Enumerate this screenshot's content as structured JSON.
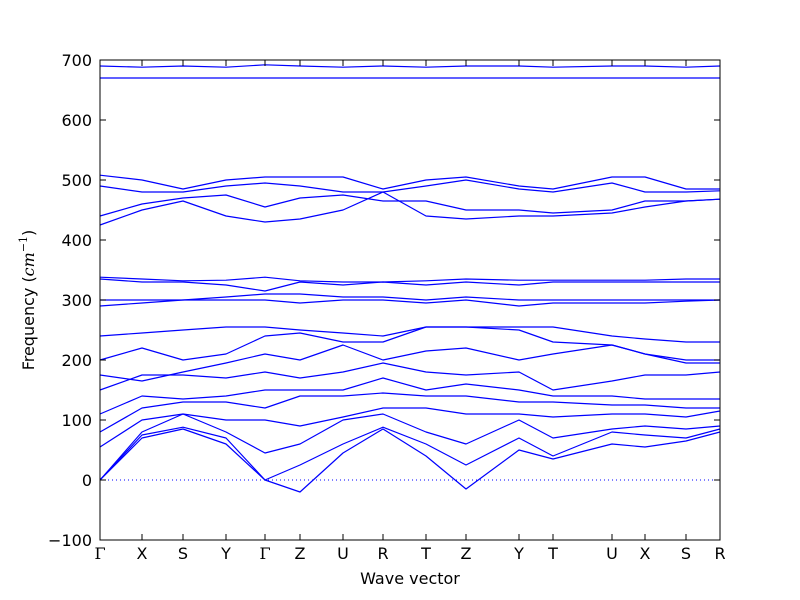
{
  "chart_data": {
    "type": "line",
    "xlabel": "Wave vector",
    "ylabel": [
      "Frequency (",
      "cm",
      "−1",
      ")"
    ],
    "color": "#0000ff",
    "x": [
      0,
      42,
      83,
      126,
      165,
      200,
      243,
      283,
      326,
      366,
      419,
      453,
      512,
      545,
      586,
      620
    ],
    "xlim": [
      0,
      620
    ],
    "xticks": [
      {
        "value": 0,
        "label": "Γ"
      },
      {
        "value": 42,
        "label": "X"
      },
      {
        "value": 83,
        "label": "S"
      },
      {
        "value": 126,
        "label": "Y"
      },
      {
        "value": 165,
        "label": "Γ"
      },
      {
        "value": 200,
        "label": "Z"
      },
      {
        "value": 243,
        "label": "U"
      },
      {
        "value": 283,
        "label": "R"
      },
      {
        "value": 326,
        "label": "T"
      },
      {
        "value": 366,
        "label": "Z"
      },
      {
        "value": 419,
        "label": "Y"
      },
      {
        "value": 453,
        "label": "T"
      },
      {
        "value": 512,
        "label": "U"
      },
      {
        "value": 545,
        "label": "X"
      },
      {
        "value": 586,
        "label": "S"
      },
      {
        "value": 620,
        "label": "R"
      }
    ],
    "ylim": [
      -100,
      700
    ],
    "yticks": [
      {
        "value": -100,
        "label": "−100"
      },
      0,
      100,
      200,
      300,
      400,
      500,
      600,
      700
    ],
    "hline": 0,
    "series": [
      {
        "values": [
          0,
          70,
          85,
          60,
          0,
          -20,
          45,
          85,
          40,
          -15,
          50,
          35,
          60,
          55,
          65,
          80
        ]
      },
      {
        "values": [
          0,
          75,
          88,
          70,
          0,
          25,
          60,
          88,
          60,
          25,
          70,
          40,
          80,
          75,
          70,
          85
        ]
      },
      {
        "values": [
          0,
          80,
          110,
          80,
          45,
          60,
          100,
          110,
          80,
          60,
          100,
          70,
          85,
          90,
          85,
          90
        ]
      },
      {
        "values": [
          55,
          100,
          110,
          100,
          100,
          90,
          105,
          120,
          120,
          110,
          110,
          105,
          110,
          110,
          105,
          115
        ]
      },
      {
        "values": [
          80,
          120,
          130,
          130,
          120,
          140,
          140,
          145,
          140,
          140,
          130,
          130,
          125,
          125,
          120,
          120
        ]
      },
      {
        "values": [
          110,
          140,
          135,
          140,
          150,
          150,
          150,
          170,
          150,
          160,
          150,
          140,
          140,
          135,
          135,
          135
        ]
      },
      {
        "values": [
          150,
          175,
          175,
          170,
          180,
          170,
          180,
          195,
          180,
          175,
          180,
          150,
          165,
          175,
          175,
          180
        ]
      },
      {
        "values": [
          175,
          165,
          180,
          195,
          210,
          200,
          225,
          200,
          215,
          220,
          200,
          210,
          225,
          210,
          195,
          195
        ]
      },
      {
        "values": [
          200,
          220,
          200,
          210,
          240,
          245,
          230,
          230,
          255,
          255,
          250,
          230,
          225,
          210,
          200,
          200
        ]
      },
      {
        "values": [
          240,
          245,
          250,
          255,
          255,
          250,
          245,
          240,
          255,
          255,
          255,
          255,
          240,
          235,
          230,
          230
        ]
      },
      {
        "values": [
          290,
          295,
          300,
          300,
          300,
          295,
          300,
          300,
          295,
          300,
          290,
          295,
          295,
          295,
          298,
          300
        ]
      },
      {
        "values": [
          300,
          300,
          300,
          305,
          310,
          310,
          305,
          305,
          300,
          305,
          300,
          300,
          300,
          300,
          300,
          300
        ]
      },
      {
        "values": [
          335,
          330,
          330,
          325,
          315,
          330,
          325,
          330,
          325,
          330,
          325,
          330,
          330,
          330,
          330,
          330
        ]
      },
      {
        "values": [
          338,
          335,
          332,
          333,
          338,
          332,
          330,
          330,
          332,
          335,
          333,
          333,
          333,
          333,
          335,
          335
        ]
      },
      {
        "values": [
          425,
          450,
          465,
          440,
          430,
          435,
          450,
          480,
          440,
          435,
          440,
          440,
          445,
          455,
          465,
          468
        ]
      },
      {
        "values": [
          440,
          460,
          470,
          475,
          455,
          470,
          475,
          465,
          465,
          450,
          450,
          445,
          450,
          465,
          465,
          468
        ]
      },
      {
        "values": [
          490,
          480,
          480,
          490,
          495,
          490,
          480,
          480,
          490,
          500,
          485,
          480,
          495,
          480,
          480,
          482
        ]
      },
      {
        "values": [
          508,
          500,
          485,
          500,
          505,
          505,
          505,
          485,
          500,
          505,
          490,
          485,
          505,
          505,
          485,
          485
        ]
      },
      {
        "values": [
          670,
          670,
          670,
          670,
          670,
          670,
          670,
          670,
          670,
          670,
          670,
          670,
          670,
          670,
          670,
          670
        ]
      },
      {
        "values": [
          690,
          688,
          690,
          688,
          692,
          690,
          688,
          690,
          688,
          690,
          690,
          688,
          690,
          690,
          688,
          690
        ]
      }
    ]
  }
}
